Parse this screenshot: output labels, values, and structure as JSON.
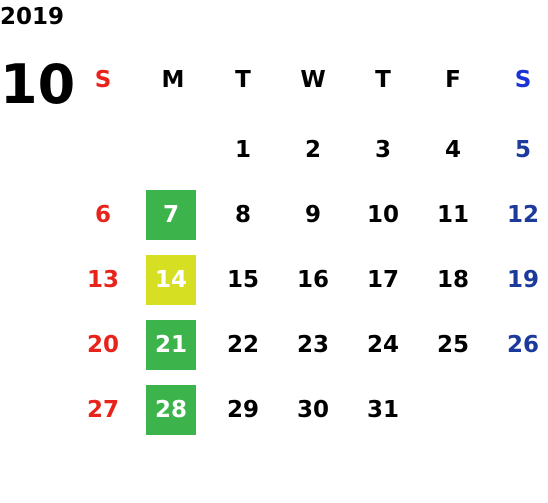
{
  "calendar": {
    "year": "2019",
    "month": "10",
    "weekdays": [
      "S",
      "M",
      "T",
      "W",
      "T",
      "F",
      "S"
    ],
    "days": [
      "1",
      "2",
      "3",
      "4",
      "5",
      "6",
      "7",
      "8",
      "9",
      "10",
      "11",
      "12",
      "13",
      "14",
      "15",
      "16",
      "17",
      "18",
      "19",
      "20",
      "21",
      "22",
      "23",
      "24",
      "25",
      "26",
      "27",
      "28",
      "29",
      "30",
      "31"
    ]
  },
  "colors": {
    "sunday": "#e8231b",
    "saturday": "#1b3a9b",
    "highlight_green": "#3db34b",
    "highlight_yellow": "#d6df22"
  }
}
